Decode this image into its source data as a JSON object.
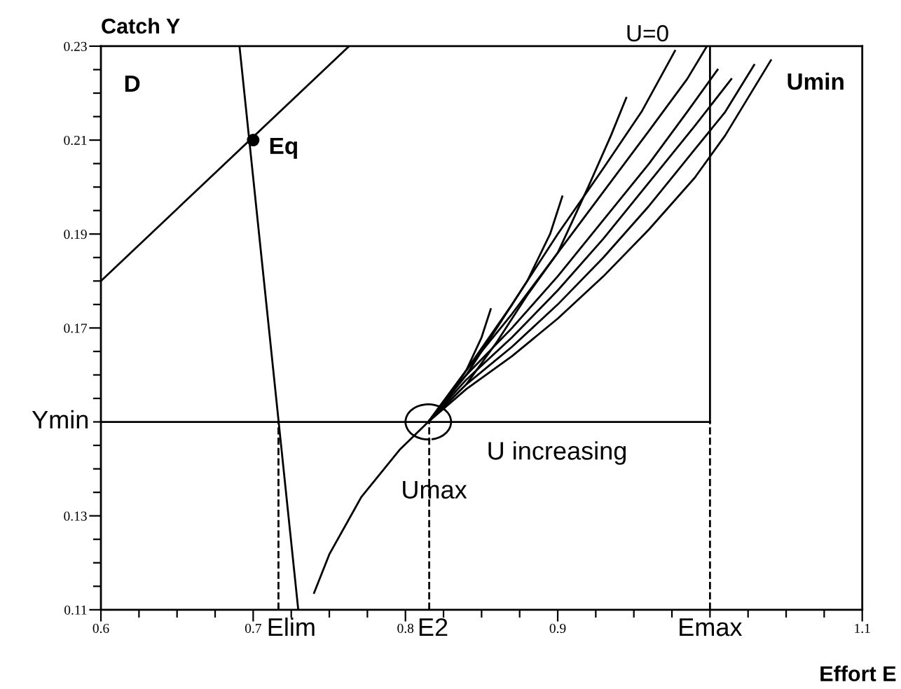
{
  "chart_data": {
    "type": "line",
    "title": "Catch Y",
    "xlabel": "Effort E",
    "xlim": [
      0.6,
      1.1
    ],
    "ylim": [
      0.11,
      0.23
    ],
    "xticks": [
      0.6,
      {
        "value": 0.625,
        "label": null
      },
      {
        "value": 0.65,
        "label": null
      },
      {
        "value": 0.675,
        "label": null
      },
      0.7,
      {
        "value": 0.725,
        "label": null
      },
      {
        "value": 0.75,
        "label": null
      },
      {
        "value": 0.775,
        "label": null
      },
      0.8,
      {
        "value": 0.825,
        "label": null
      },
      {
        "value": 0.85,
        "label": null
      },
      {
        "value": 0.875,
        "label": null
      },
      0.9,
      {
        "value": 0.925,
        "label": null
      },
      {
        "value": 0.95,
        "label": null
      },
      {
        "value": 0.975,
        "label": null
      },
      {
        "value": 1.0,
        "label": null
      },
      {
        "value": 1.025,
        "label": null
      },
      {
        "value": 1.05,
        "label": null
      },
      {
        "value": 1.075,
        "label": null
      },
      1.1
    ],
    "yticks": [
      0.11,
      {
        "value": 0.115,
        "label": null
      },
      {
        "value": 0.12,
        "label": null
      },
      {
        "value": 0.125,
        "label": null
      },
      0.13,
      {
        "value": 0.135,
        "label": null
      },
      {
        "value": 0.14,
        "label": null
      },
      {
        "value": 0.145,
        "label": null
      },
      {
        "value": 0.15,
        "label": null
      },
      {
        "value": 0.155,
        "label": null
      },
      {
        "value": 0.16,
        "label": null
      },
      {
        "value": 0.165,
        "label": null
      },
      0.17,
      {
        "value": 0.175,
        "label": null
      },
      {
        "value": 0.18,
        "label": null
      },
      {
        "value": 0.185,
        "label": null
      },
      0.19,
      {
        "value": 0.195,
        "label": null
      },
      {
        "value": 0.2,
        "label": null
      },
      {
        "value": 0.205,
        "label": null
      },
      0.21,
      {
        "value": 0.215,
        "label": null
      },
      {
        "value": 0.22,
        "label": null
      },
      {
        "value": 0.225,
        "label": null
      },
      0.23
    ],
    "grid": false,
    "legend": false,
    "series": [
      {
        "color": "#000000",
        "x": [
          0.691,
          0.7296
        ],
        "values": [
          0.23,
          0.11
        ]
      },
      {
        "color": "#000000",
        "x": [
          0.6,
          0.763
        ],
        "values": [
          0.18,
          0.23
        ]
      },
      {
        "color": "#000000",
        "x": [
          0.6,
          1.0
        ],
        "values": [
          0.15,
          0.15
        ]
      },
      {
        "color": "#000000",
        "x": [
          1.0,
          1.0
        ],
        "values": [
          0.15,
          0.23
        ]
      },
      {
        "color": "#000000",
        "x": [
          1.0,
          1.0
        ],
        "values": [
          0.11,
          0.15
        ],
        "line_style": "dashed"
      },
      {
        "color": "#000000",
        "x": [
          0.7166,
          0.7166
        ],
        "values": [
          0.11,
          0.15
        ],
        "line_style": "dashed"
      },
      {
        "color": "#000000",
        "x": [
          0.8156,
          0.8156
        ],
        "values": [
          0.11,
          0.15
        ],
        "line_style": "dashed"
      },
      {
        "color": "#000000",
        "type": "scatter",
        "marker": "circle",
        "x": [
          0.7
        ],
        "values": [
          0.21
        ]
      },
      {
        "color": "#000000",
        "x": [
          0.74,
          0.75,
          0.771,
          0.796,
          0.815
        ],
        "values": [
          0.1136,
          0.1218,
          0.134,
          0.144,
          0.15
        ]
      },
      {
        "color": "#000000",
        "x": [
          0.945,
          0.935,
          0.92,
          0.9,
          0.88,
          0.86,
          0.84,
          0.815
        ],
        "values": [
          0.219,
          0.211,
          0.2,
          0.186,
          0.177,
          0.167,
          0.158,
          0.15
        ]
      },
      {
        "color": "#000000",
        "x": [
          0.903,
          0.895,
          0.88,
          0.86,
          0.84,
          0.815
        ],
        "values": [
          0.198,
          0.19,
          0.18,
          0.17,
          0.16,
          0.15
        ]
      },
      {
        "color": "#000000",
        "x": [
          0.856,
          0.85,
          0.84,
          0.83,
          0.815
        ],
        "values": [
          0.174,
          0.168,
          0.161,
          0.156,
          0.15
        ]
      },
      {
        "color": "#000000",
        "x": [
          0.815,
          0.84,
          0.87,
          0.9,
          0.93,
          0.955,
          0.977
        ],
        "values": [
          0.15,
          0.161,
          0.175,
          0.19,
          0.204,
          0.216,
          0.229
        ]
      },
      {
        "color": "#000000",
        "x": [
          0.815,
          0.84,
          0.87,
          0.9,
          0.93,
          0.96,
          0.985,
          0.998
        ],
        "values": [
          0.15,
          0.161,
          0.173,
          0.186,
          0.199,
          0.212,
          0.223,
          0.23
        ]
      },
      {
        "color": "#000000",
        "x": [
          0.815,
          0.84,
          0.87,
          0.9,
          0.93,
          0.96,
          0.985,
          1.005
        ],
        "values": [
          0.15,
          0.16,
          0.17,
          0.181,
          0.193,
          0.205,
          0.216,
          0.225
        ]
      },
      {
        "color": "#000000",
        "x": [
          0.815,
          0.84,
          0.87,
          0.9,
          0.93,
          0.96,
          0.99,
          1.014
        ],
        "values": [
          0.15,
          0.159,
          0.168,
          0.178,
          0.189,
          0.201,
          0.213,
          0.223
        ]
      },
      {
        "color": "#000000",
        "x": [
          0.815,
          0.84,
          0.87,
          0.9,
          0.93,
          0.96,
          0.99,
          1.01,
          1.029
        ],
        "values": [
          0.15,
          0.158,
          0.166,
          0.175,
          0.185,
          0.196,
          0.208,
          0.216,
          0.226
        ]
      },
      {
        "color": "#000000",
        "x": [
          0.815,
          0.84,
          0.87,
          0.9,
          0.93,
          0.96,
          0.99,
          1.01,
          1.04
        ],
        "values": [
          0.15,
          0.157,
          0.164,
          0.172,
          0.181,
          0.191,
          0.202,
          0.211,
          0.227
        ]
      }
    ],
    "annotations": [
      "D",
      {
        "text": "Eq",
        "x": 0.7,
        "y": 0.21
      },
      {
        "text": "U=0",
        "x": 0.977,
        "y": 0.229
      },
      {
        "text": "Umin",
        "x": 1.04,
        "y": 0.227
      },
      {
        "text": "U increasing",
        "x": 0.815,
        "y": 0.15
      },
      {
        "text": "Umax",
        "x": 0.815,
        "y": 0.15
      },
      {
        "text": "Elim",
        "x": 0.7166,
        "y": 0.11
      },
      {
        "text": "E2",
        "x": 0.8156,
        "y": 0.11
      },
      {
        "text": "Emax",
        "x": 1.0,
        "y": 0.11
      },
      {
        "text": "Ymin",
        "x": 0.6,
        "y": 0.15
      }
    ]
  }
}
